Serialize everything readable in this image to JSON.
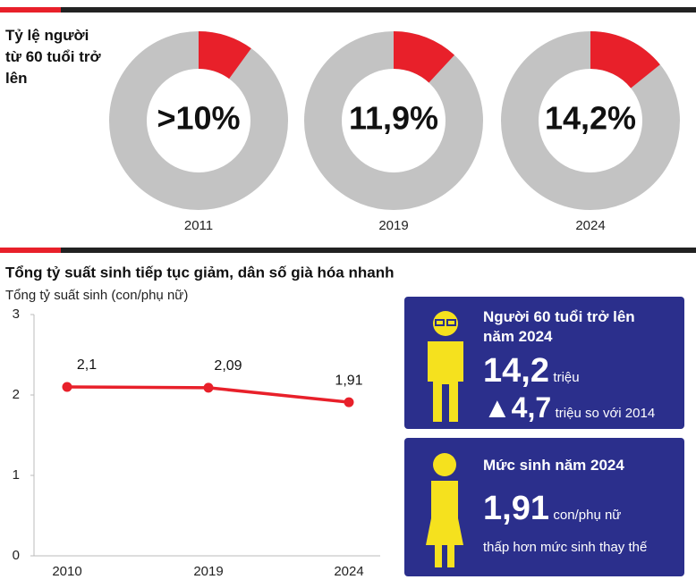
{
  "donut_heading": "Tỷ lệ người từ 60 tuổi trở lên",
  "chart_data": [
    {
      "type": "pie",
      "categories": [
        "2011"
      ],
      "values": [
        10
      ],
      "value_labels": [
        ">10%"
      ],
      "color": "#e8202a"
    },
    {
      "type": "pie",
      "categories": [
        "2019"
      ],
      "values": [
        11.9
      ],
      "value_labels": [
        "11,9%"
      ],
      "color": "#e8202a"
    },
    {
      "type": "pie",
      "categories": [
        "2024"
      ],
      "values": [
        14.2
      ],
      "value_labels": [
        "14,2%"
      ],
      "color": "#e8202a"
    },
    {
      "type": "line",
      "title": "Tổng tỷ suất sinh tiếp tục giảm, dân số già hóa nhanh",
      "y_label": "Tổng tỷ suất sinh (con/phụ nữ)",
      "categories": [
        "2010",
        "2019",
        "2024"
      ],
      "values": [
        2.1,
        2.09,
        1.91
      ],
      "value_labels": [
        "2,1",
        "2,09",
        "1,91"
      ],
      "color": "#e8202a",
      "ylim": [
        0,
        3
      ],
      "yticks": [
        0,
        1,
        2,
        3
      ],
      "grid": false
    }
  ],
  "info_boxes": [
    {
      "title": "Người 60 tuổi trở lên năm 2024",
      "big": "14,2",
      "unit": "triệu",
      "change": "4,7",
      "change_text": "triệu so với 2014"
    },
    {
      "title": "Mức sinh năm 2024",
      "big": "1,91",
      "unit": "con/phụ nữ",
      "note": "thấp hơn mức sinh thay thế"
    }
  ]
}
